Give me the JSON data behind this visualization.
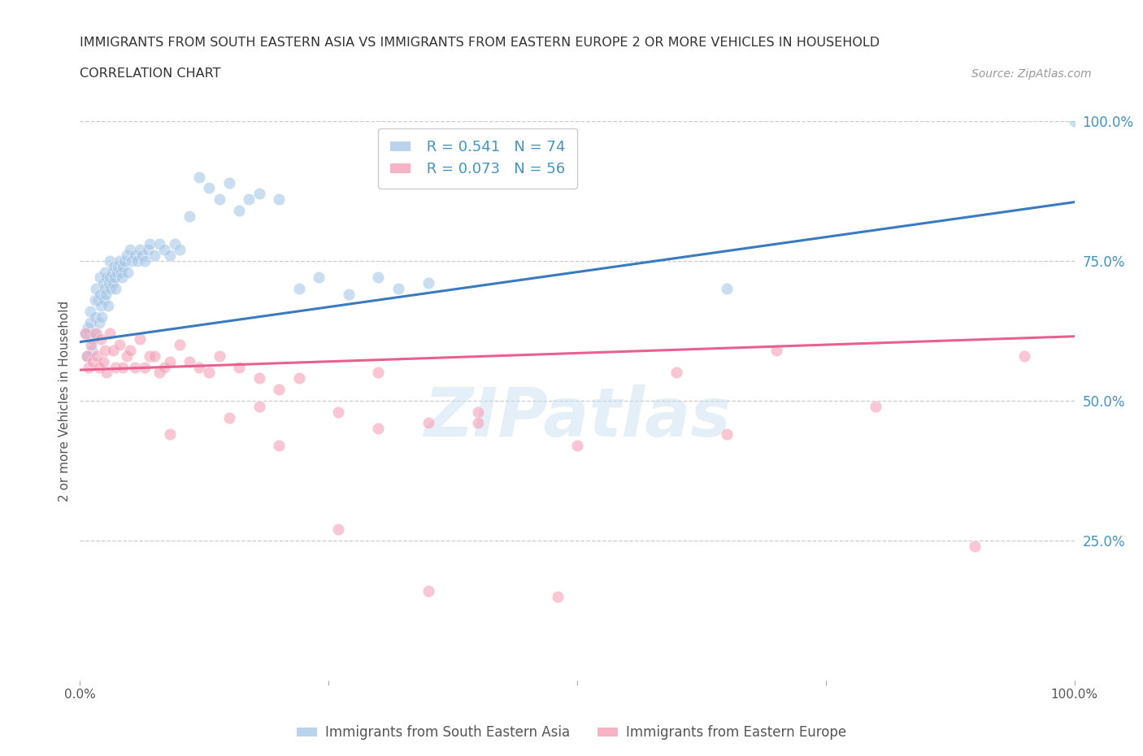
{
  "title_line1": "IMMIGRANTS FROM SOUTH EASTERN ASIA VS IMMIGRANTS FROM EASTERN EUROPE 2 OR MORE VEHICLES IN HOUSEHOLD",
  "title_line2": "CORRELATION CHART",
  "source_text": "Source: ZipAtlas.com",
  "ylabel": "2 or more Vehicles in Household",
  "legend_label1": "Immigrants from South Eastern Asia",
  "legend_label2": "Immigrants from Eastern Europe",
  "R1": 0.541,
  "N1": 74,
  "R2": 0.073,
  "N2": 56,
  "blue_color": "#a8c8e8",
  "pink_color": "#f4a0b8",
  "blue_line_color": "#3a7abf",
  "pink_line_color": "#e86090",
  "right_axis_color": "#4393c3",
  "xlim": [
    0,
    1
  ],
  "ylim": [
    0,
    1
  ],
  "xtick_vals": [
    0,
    0.25,
    0.5,
    0.75,
    1.0
  ],
  "xtick_labels_show": [
    "0.0%",
    "",
    "",
    "",
    "100.0%"
  ],
  "ytick_vals_right": [
    0.25,
    0.5,
    0.75,
    1.0
  ],
  "ytick_labels_right": [
    "25.0%",
    "50.0%",
    "75.0%",
    "100.0%"
  ],
  "blue_x": [
    0.005,
    0.007,
    0.008,
    0.01,
    0.01,
    0.012,
    0.013,
    0.015,
    0.015,
    0.016,
    0.017,
    0.018,
    0.019,
    0.02,
    0.02,
    0.021,
    0.022,
    0.023,
    0.024,
    0.025,
    0.025,
    0.026,
    0.027,
    0.028,
    0.029,
    0.03,
    0.03,
    0.031,
    0.032,
    0.033,
    0.034,
    0.035,
    0.036,
    0.037,
    0.038,
    0.04,
    0.041,
    0.042,
    0.043,
    0.045,
    0.047,
    0.048,
    0.05,
    0.052,
    0.055,
    0.058,
    0.06,
    0.063,
    0.065,
    0.068,
    0.07,
    0.075,
    0.08,
    0.085,
    0.09,
    0.095,
    0.1,
    0.11,
    0.12,
    0.13,
    0.14,
    0.15,
    0.16,
    0.17,
    0.18,
    0.2,
    0.22,
    0.24,
    0.27,
    0.3,
    0.32,
    0.35,
    0.65,
    1.0
  ],
  "blue_y": [
    0.62,
    0.58,
    0.63,
    0.66,
    0.64,
    0.59,
    0.61,
    0.68,
    0.65,
    0.7,
    0.62,
    0.68,
    0.64,
    0.72,
    0.69,
    0.67,
    0.65,
    0.71,
    0.68,
    0.73,
    0.7,
    0.69,
    0.72,
    0.67,
    0.71,
    0.75,
    0.72,
    0.7,
    0.73,
    0.71,
    0.74,
    0.72,
    0.7,
    0.73,
    0.74,
    0.75,
    0.73,
    0.72,
    0.74,
    0.75,
    0.76,
    0.73,
    0.77,
    0.75,
    0.76,
    0.75,
    0.77,
    0.76,
    0.75,
    0.77,
    0.78,
    0.76,
    0.78,
    0.77,
    0.76,
    0.78,
    0.77,
    0.83,
    0.9,
    0.88,
    0.86,
    0.89,
    0.84,
    0.86,
    0.87,
    0.86,
    0.7,
    0.72,
    0.69,
    0.72,
    0.7,
    0.71,
    0.7,
    1.0
  ],
  "pink_x": [
    0.005,
    0.007,
    0.009,
    0.011,
    0.013,
    0.015,
    0.017,
    0.019,
    0.021,
    0.023,
    0.025,
    0.027,
    0.03,
    0.033,
    0.036,
    0.04,
    0.043,
    0.047,
    0.05,
    0.055,
    0.06,
    0.065,
    0.07,
    0.075,
    0.08,
    0.085,
    0.09,
    0.1,
    0.11,
    0.12,
    0.13,
    0.14,
    0.16,
    0.18,
    0.2,
    0.22,
    0.26,
    0.3,
    0.35,
    0.4,
    0.5,
    0.6,
    0.65,
    0.7,
    0.8,
    0.9,
    0.95,
    0.3,
    0.15,
    0.18,
    0.4,
    0.09,
    0.2,
    0.26,
    0.35,
    0.48
  ],
  "pink_y": [
    0.62,
    0.58,
    0.56,
    0.6,
    0.57,
    0.62,
    0.58,
    0.56,
    0.61,
    0.57,
    0.59,
    0.55,
    0.62,
    0.59,
    0.56,
    0.6,
    0.56,
    0.58,
    0.59,
    0.56,
    0.61,
    0.56,
    0.58,
    0.58,
    0.55,
    0.56,
    0.57,
    0.6,
    0.57,
    0.56,
    0.55,
    0.58,
    0.56,
    0.54,
    0.52,
    0.54,
    0.48,
    0.45,
    0.46,
    0.48,
    0.42,
    0.55,
    0.44,
    0.59,
    0.49,
    0.24,
    0.58,
    0.55,
    0.47,
    0.49,
    0.46,
    0.44,
    0.42,
    0.27,
    0.16,
    0.15
  ],
  "watermark_text": "ZIPatlas",
  "background_color": "#ffffff",
  "grid_color": "#cccccc"
}
